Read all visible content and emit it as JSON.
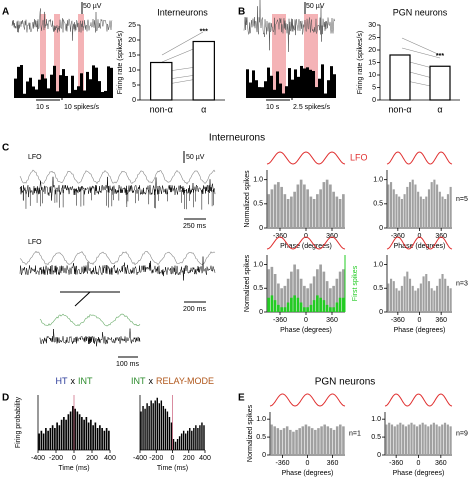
{
  "panel_labels": [
    "A",
    "B",
    "C",
    "D",
    "E"
  ],
  "section_titles": [
    "Interneurons",
    "PGN neurons"
  ],
  "scale_labels": [
    "50 µV",
    "10 s",
    "10 spikes/s",
    "50 µV",
    "10 s",
    "2.5 spikes/s",
    "50 µV",
    "250 ms",
    "200 ms",
    "100 ms"
  ],
  "trace_labels": [
    "LFO",
    "LFO"
  ],
  "lfo_legend": "LFO",
  "chart_data": [
    {
      "type": "bar",
      "title": "Interneurons",
      "ylabel": "Firing rate (spikes/s)",
      "categories": [
        "non-α",
        "α"
      ],
      "values": [
        12.5,
        19.5
      ],
      "color": "#ffffff",
      "ylim": [
        0,
        25
      ],
      "yticks": [
        0,
        5,
        10,
        15,
        20,
        25
      ],
      "annotation": "***"
    },
    {
      "type": "bar",
      "title": "PGN neurons",
      "ylabel": "Firing rate (spikes/s)",
      "categories": [
        "non-α",
        "α"
      ],
      "values": [
        18,
        13.5
      ],
      "color": "#ffffff",
      "ylim": [
        0,
        30
      ],
      "yticks": [
        0,
        5,
        10,
        15,
        20,
        25,
        30
      ],
      "annotation": "***"
    },
    {
      "type": "histogram",
      "ylabel": "Normalized spikes",
      "xlabel": "Phase (degrees)",
      "bins": [
        -540,
        -495,
        -450,
        -405,
        -360,
        -315,
        -270,
        -225,
        -180,
        -135,
        -90,
        -45,
        0,
        45,
        90,
        135,
        180,
        225,
        270,
        315,
        360,
        405,
        450,
        495,
        540
      ],
      "values": [
        0.7,
        0.8,
        0.9,
        0.95,
        0.85,
        0.7,
        0.6,
        0.65,
        0.75,
        0.9,
        1.0,
        0.9,
        0.8,
        0.65,
        0.6,
        0.7,
        0.8,
        0.95,
        1.0,
        0.9,
        0.75,
        0.65,
        0.6,
        0.7
      ],
      "color": "#a0a0a0",
      "xlim": [
        -540,
        540
      ],
      "xticks": [
        -360,
        0,
        360
      ],
      "ylim": [
        0,
        1.2
      ],
      "yticks": [
        0,
        0.5,
        {
          "value": 1,
          "label": "1.0"
        }
      ]
    },
    {
      "type": "histogram",
      "xlabel": "Phase (degrees)",
      "bins": [
        -540,
        -495,
        -450,
        -405,
        -360,
        -315,
        -270,
        -225,
        -180,
        -135,
        -90,
        -45,
        0,
        45,
        90,
        135,
        180,
        225,
        270,
        315,
        360,
        405,
        450,
        495,
        540
      ],
      "values": [
        0.9,
        0.95,
        0.8,
        0.7,
        0.65,
        0.6,
        0.7,
        0.85,
        0.95,
        1.0,
        0.9,
        0.75,
        0.65,
        0.6,
        0.65,
        0.8,
        0.95,
        1.0,
        0.9,
        0.75,
        0.65,
        0.6,
        0.7,
        0.85
      ],
      "color": "#a0a0a0",
      "xlim": [
        -540,
        540
      ],
      "xticks": [
        -360,
        0,
        360
      ],
      "ylim": [
        0,
        1.2
      ],
      "yticks": [
        0,
        0.5,
        {
          "value": 1,
          "label": "1.0"
        }
      ],
      "n_label": "n=5"
    },
    {
      "type": "histogram",
      "ylabel": "Normalized spikes",
      "xlabel": "Phase (degrees)",
      "y2label": "First spikes",
      "bins": [
        -540,
        -495,
        -450,
        -405,
        -360,
        -315,
        -270,
        -225,
        -180,
        -135,
        -90,
        -45,
        0,
        45,
        90,
        135,
        180,
        225,
        270,
        315,
        360,
        405,
        450,
        495,
        540
      ],
      "values": [
        0.9,
        0.95,
        0.8,
        0.6,
        0.5,
        0.55,
        0.7,
        0.85,
        1.0,
        0.9,
        0.7,
        0.55,
        0.5,
        0.6,
        0.75,
        0.9,
        1.0,
        0.85,
        0.65,
        0.5,
        0.55,
        0.7,
        0.85,
        0.9
      ],
      "y2_values": [
        0.3,
        0.35,
        0.25,
        0.15,
        0.1,
        0.1,
        0.2,
        0.3,
        0.35,
        0.3,
        0.2,
        0.1,
        0.1,
        0.15,
        0.25,
        0.35,
        0.3,
        0.25,
        0.15,
        0.1,
        0.1,
        0.2,
        0.3,
        0.3
      ],
      "color": "#a0a0a0",
      "y2_color": "#22cc22",
      "xlim": [
        -540,
        540
      ],
      "xticks": [
        -360,
        0,
        360
      ],
      "ylim": [
        0,
        1.2
      ],
      "y2lim": [
        0,
        1.2
      ],
      "yticks": [
        0,
        0.5,
        {
          "value": 1,
          "label": "1.0"
        }
      ]
    },
    {
      "type": "histogram",
      "xlabel": "Phase (degrees)",
      "bins": [
        -540,
        -495,
        -450,
        -405,
        -360,
        -315,
        -270,
        -225,
        -180,
        -135,
        -90,
        -45,
        0,
        45,
        90,
        135,
        180,
        225,
        270,
        315,
        360,
        405,
        450,
        495,
        540
      ],
      "values": [
        0.6,
        0.7,
        0.65,
        0.5,
        0.45,
        0.55,
        0.75,
        0.85,
        0.7,
        0.55,
        0.45,
        0.5,
        0.6,
        0.75,
        0.8,
        0.65,
        0.5,
        0.45,
        0.55,
        0.7,
        0.8,
        0.7,
        0.55,
        0.5
      ],
      "color": "#a0a0a0",
      "xlim": [
        -540,
        540
      ],
      "xticks": [
        -360,
        0,
        360
      ],
      "ylim": [
        0,
        1.2
      ],
      "yticks": [
        0,
        0.5,
        {
          "value": 1,
          "label": "1.0"
        }
      ],
      "n_label": "n=3"
    },
    {
      "type": "histogram",
      "title_parts": [
        {
          "text": "HT",
          "color": "#2a3a9a"
        },
        {
          "text": "x",
          "color": "#000000"
        },
        {
          "text": "INT",
          "color": "#2a8a2a"
        }
      ],
      "ylabel": "Firing probability",
      "xlabel": "Time (ms)",
      "bins": [
        -400,
        -375,
        -350,
        -325,
        -300,
        -275,
        -250,
        -225,
        -200,
        -175,
        -150,
        -125,
        -100,
        -75,
        -50,
        -25,
        0,
        25,
        50,
        75,
        100,
        125,
        150,
        175,
        200,
        225,
        250,
        275,
        300,
        325,
        350,
        375,
        400
      ],
      "values": [
        0.3,
        0.35,
        0.3,
        0.4,
        0.35,
        0.4,
        0.45,
        0.4,
        0.5,
        0.45,
        0.55,
        0.6,
        0.55,
        0.65,
        0.7,
        0.8,
        0.75,
        0.7,
        0.65,
        0.6,
        0.55,
        0.6,
        0.5,
        0.55,
        0.45,
        0.5,
        0.4,
        0.45,
        0.4,
        0.35,
        0.4,
        0.35
      ],
      "color": "#000000",
      "xlim": [
        -400,
        400
      ],
      "xticks": [
        -400,
        -200,
        0,
        200,
        400
      ],
      "ylim": [
        0,
        1
      ]
    },
    {
      "type": "histogram",
      "title_parts": [
        {
          "text": "INT",
          "color": "#2a8a2a"
        },
        {
          "text": "x",
          "color": "#000000"
        },
        {
          "text": "RELAY-MODE",
          "color": "#b0561a"
        }
      ],
      "xlabel": "Time (ms)",
      "bins": [
        -400,
        -375,
        -350,
        -325,
        -300,
        -275,
        -250,
        -225,
        -200,
        -175,
        -150,
        -125,
        -100,
        -75,
        -50,
        -25,
        0,
        25,
        50,
        75,
        100,
        125,
        150,
        175,
        200,
        225,
        250,
        275,
        300,
        325,
        350,
        375,
        400
      ],
      "values": [
        0.7,
        0.8,
        0.75,
        0.85,
        0.8,
        0.9,
        0.85,
        0.9,
        0.95,
        0.85,
        0.9,
        0.8,
        0.75,
        0.7,
        0.6,
        0.5,
        0.2,
        0.15,
        0.2,
        0.25,
        0.3,
        0.35,
        0.3,
        0.35,
        0.4,
        0.35,
        0.4,
        0.45,
        0.4,
        0.45,
        0.5,
        0.45
      ],
      "color": "#000000",
      "xlim": [
        -400,
        400
      ],
      "xticks": [
        -400,
        -200,
        0,
        200,
        400
      ],
      "ylim": [
        0,
        1
      ]
    },
    {
      "type": "histogram",
      "ylabel": "Normalized spikes",
      "xlabel": "Phase (degrees)",
      "bins": [
        -540,
        -495,
        -450,
        -405,
        -360,
        -315,
        -270,
        -225,
        -180,
        -135,
        -90,
        -45,
        0,
        45,
        90,
        135,
        180,
        225,
        270,
        315,
        360,
        405,
        450,
        495,
        540
      ],
      "values": [
        0.85,
        0.8,
        0.75,
        0.7,
        0.75,
        0.8,
        0.7,
        0.65,
        0.7,
        0.75,
        0.8,
        0.85,
        0.8,
        0.75,
        0.7,
        0.75,
        0.8,
        0.85,
        0.8,
        0.75,
        0.7,
        0.8,
        0.85,
        0.8
      ],
      "color": "#a0a0a0",
      "xlim": [
        -540,
        540
      ],
      "xticks": [
        -360,
        0,
        360
      ],
      "ylim": [
        0,
        1.2
      ],
      "yticks": [
        0,
        0.5,
        {
          "value": 1,
          "label": "1.0"
        }
      ],
      "n_label": "n=1"
    },
    {
      "type": "histogram",
      "xlabel": "Phase (degrees)",
      "bins": [
        -540,
        -495,
        -450,
        -405,
        -360,
        -315,
        -270,
        -225,
        -180,
        -135,
        -90,
        -45,
        0,
        45,
        90,
        135,
        180,
        225,
        270,
        315,
        360,
        405,
        450,
        495,
        540
      ],
      "values": [
        0.85,
        0.9,
        0.85,
        0.8,
        0.85,
        0.9,
        0.85,
        0.8,
        0.85,
        0.9,
        0.85,
        0.8,
        0.85,
        0.9,
        0.85,
        0.8,
        0.85,
        0.9,
        0.85,
        0.8,
        0.85,
        0.9,
        0.85,
        0.8
      ],
      "color": "#a0a0a0",
      "xlim": [
        -540,
        540
      ],
      "xticks": [
        -360,
        0,
        360
      ],
      "ylim": [
        0,
        1.2
      ],
      "yticks": [
        0,
        0.5,
        {
          "value": 1,
          "label": "1.0"
        }
      ],
      "n_label": "n=9"
    }
  ]
}
